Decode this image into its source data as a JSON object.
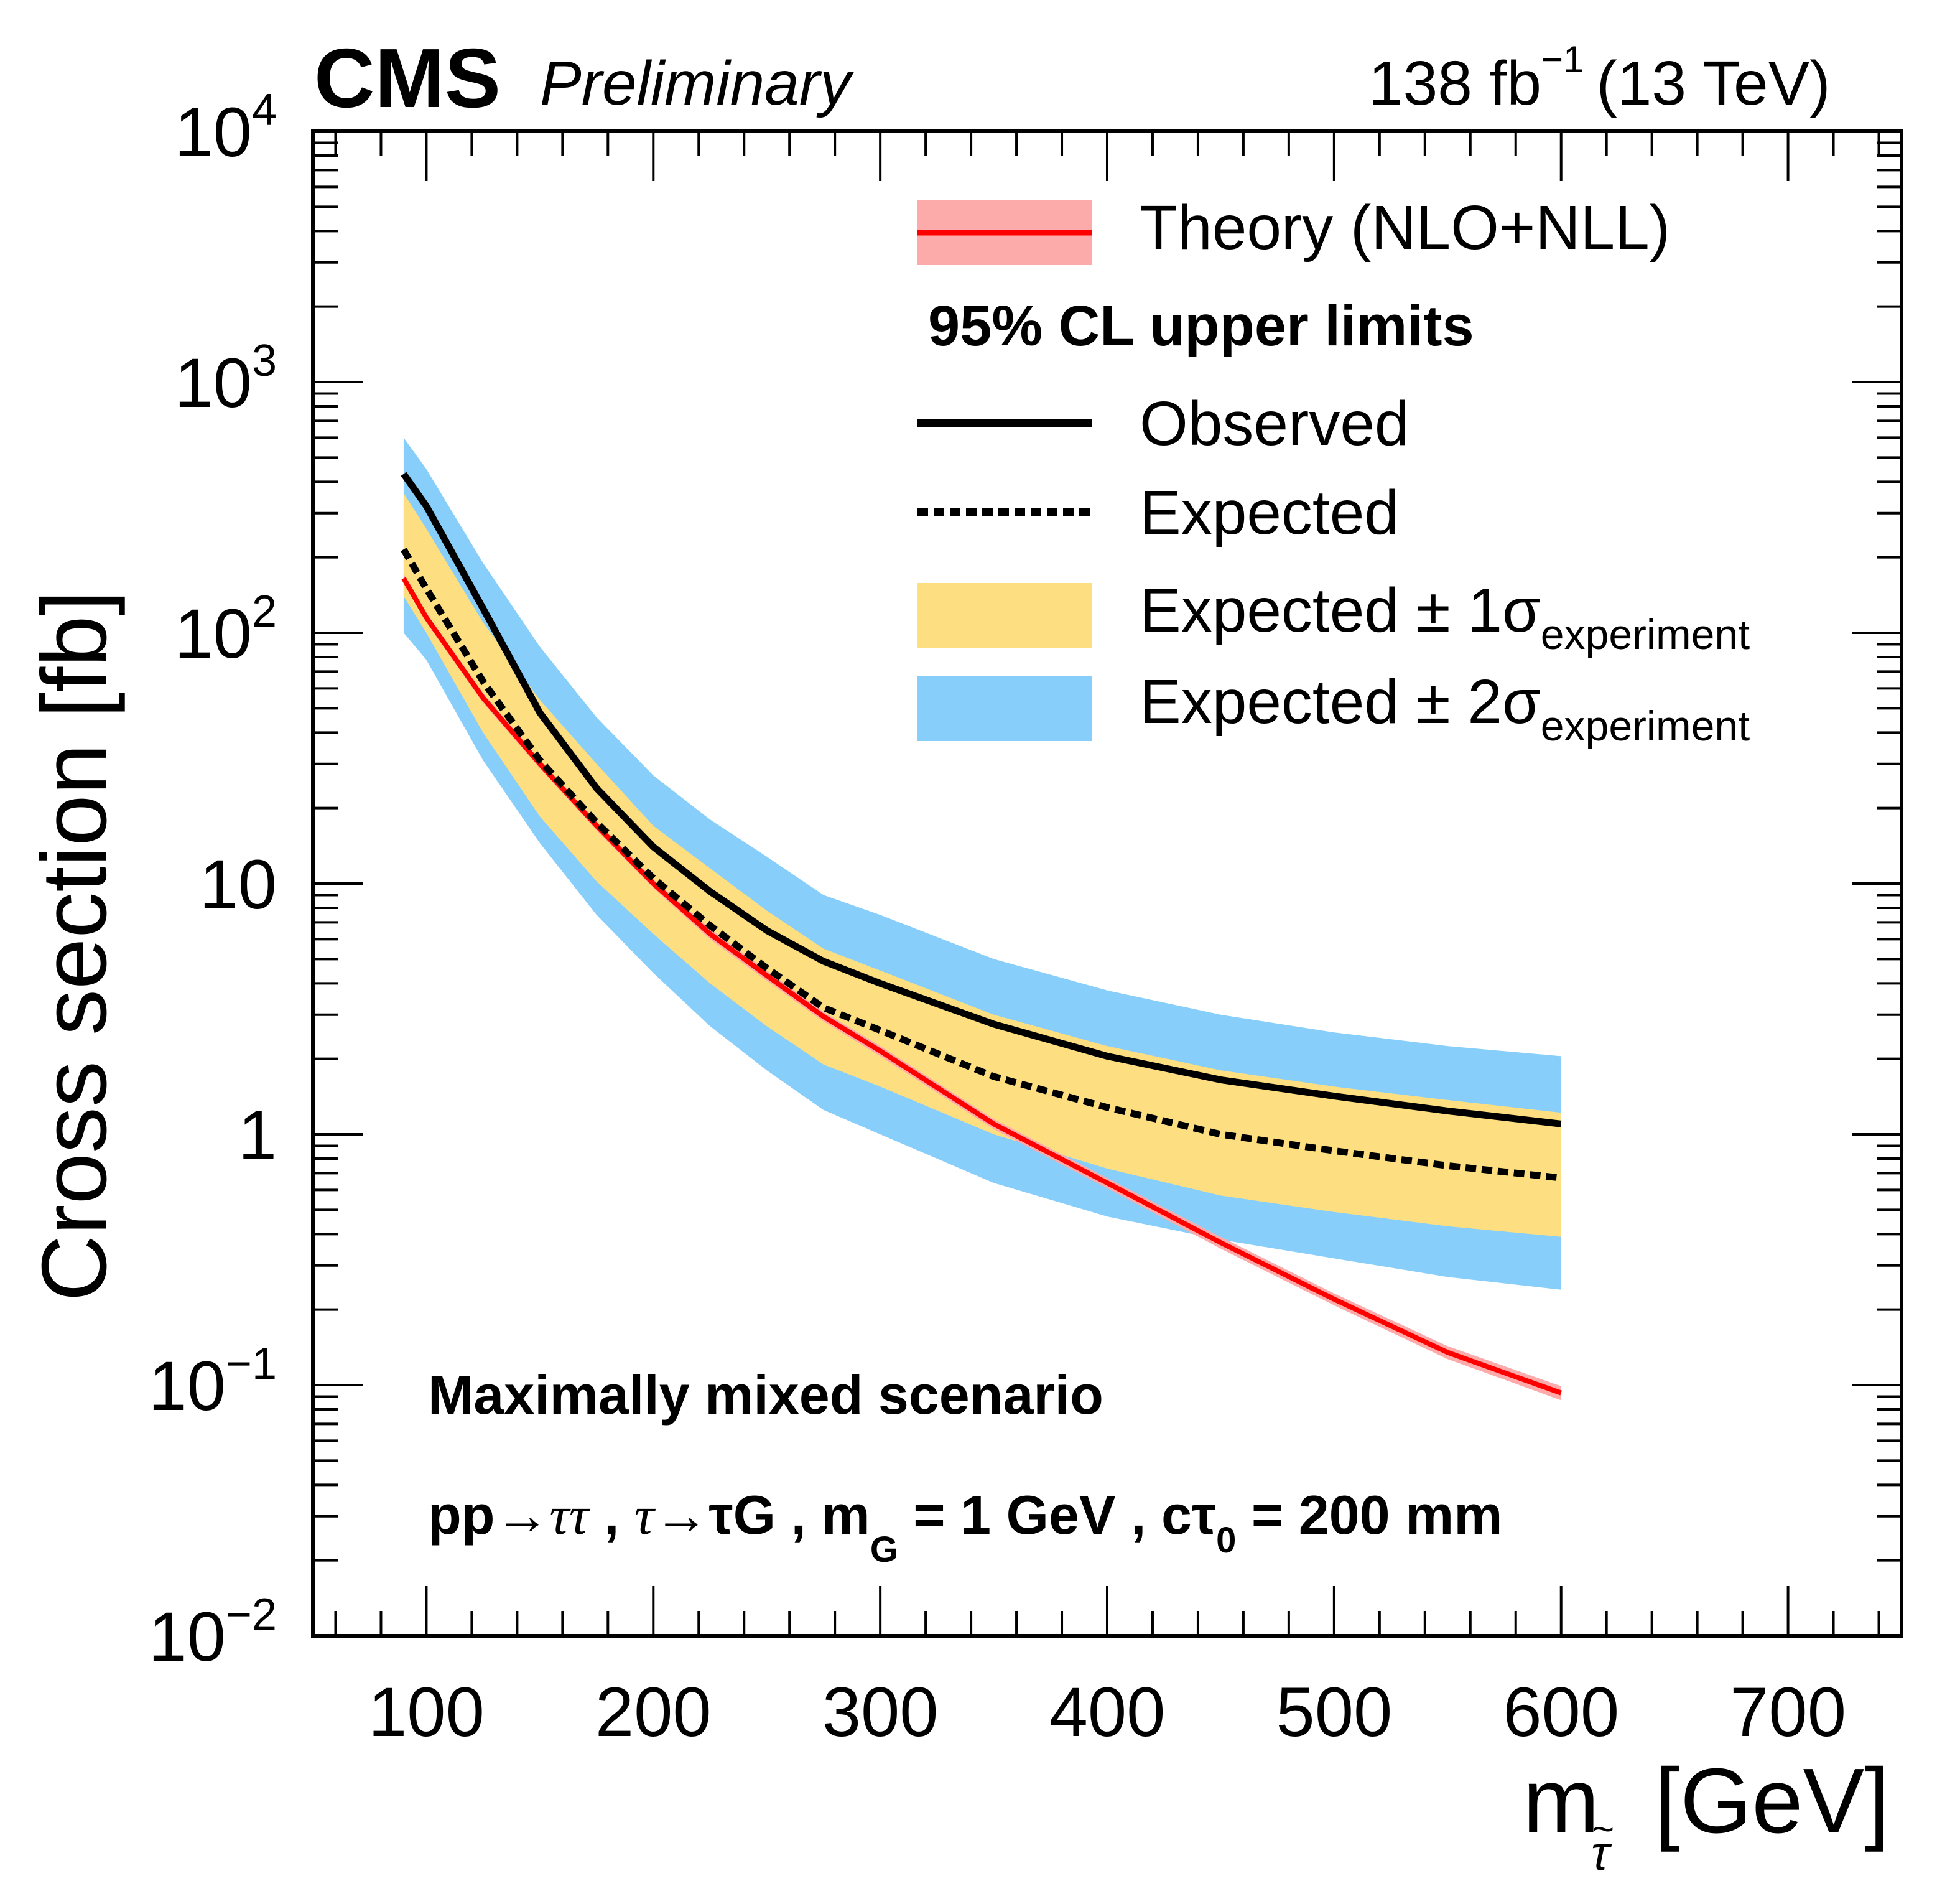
{
  "header": {
    "experiment": "CMS",
    "status": "Preliminary",
    "luminosity": "138 fb",
    "luminosity_exp": "−1",
    "energy": "(13 TeV)"
  },
  "legend": {
    "theory": "Theory (NLO+NLL)",
    "limits_header": "95% CL upper limits",
    "observed": "Observed",
    "expected": "Expected",
    "one_sigma": "Expected ± 1σ",
    "two_sigma": "Expected ± 2σ",
    "sigma_sub": "experiment"
  },
  "annotation": {
    "scenario": "Maximally mixed scenario",
    "process_a": "pp→",
    "process_b": " , ",
    "process_c": "→τ",
    "process_d": " , m",
    "process_e": " = 1 GeV , cτ",
    "process_f": "0",
    "process_g": " = 200 mm",
    "tau": "τ",
    "G": "G",
    "tilde": "~"
  },
  "colors": {
    "theory_line": "#ff0000",
    "theory_band": "#fdaaaa",
    "one_sigma": "#fddf81",
    "two_sigma": "#87cefa",
    "observed": "#000000"
  },
  "chart_data": {
    "type": "line",
    "title": "CMS Preliminary",
    "subtitle": "138 fb^-1 (13 TeV)",
    "xlabel": "m_stau [GeV]",
    "ylabel": "Cross section [fb]",
    "xlim": [
      50,
      750
    ],
    "ylim": [
      0.01,
      10000
    ],
    "yscale": "log",
    "grid": false,
    "legend_position": "top-right",
    "x_ticks": [
      "100",
      "200",
      "300",
      "400",
      "500",
      "600",
      "700"
    ],
    "x_tick_values": [
      100,
      200,
      300,
      400,
      500,
      600,
      700
    ],
    "y_ticks": [
      {
        "value": 10000,
        "base": "10",
        "exp": "4"
      },
      {
        "value": 1000,
        "base": "10",
        "exp": "3"
      },
      {
        "value": 100,
        "base": "10",
        "exp": "2"
      },
      {
        "value": 10,
        "base": "10",
        "exp": ""
      },
      {
        "value": 1,
        "base": "1",
        "exp": ""
      },
      {
        "value": 0.1,
        "base": "10",
        "exp": "−1"
      },
      {
        "value": 0.01,
        "base": "10",
        "exp": "−2"
      }
    ],
    "x": [
      90,
      100,
      125,
      150,
      175,
      200,
      225,
      250,
      275,
      300,
      350,
      400,
      450,
      500,
      550,
      600
    ],
    "series": [
      {
        "name": "Observed",
        "values": [
          430,
          320,
          125,
          48,
          24,
          14,
          9.3,
          6.5,
          4.9,
          4.0,
          2.75,
          2.05,
          1.65,
          1.42,
          1.24,
          1.1
        ]
      },
      {
        "name": "Expected",
        "values": [
          215,
          150,
          64,
          31,
          17.5,
          10.5,
          6.8,
          4.6,
          3.2,
          2.6,
          1.7,
          1.28,
          1.0,
          0.86,
          0.75,
          0.67
        ]
      },
      {
        "name": "Expected +1 sigma",
        "values": [
          360,
          260,
          110,
          54,
          30,
          17,
          11.5,
          7.8,
          5.5,
          4.5,
          3.0,
          2.25,
          1.8,
          1.55,
          1.37,
          1.22
        ]
      },
      {
        "name": "Expected -1 sigma",
        "values": [
          140,
          100,
          40,
          18.5,
          10.2,
          6.3,
          4.0,
          2.7,
          1.9,
          1.55,
          1.0,
          0.73,
          0.57,
          0.49,
          0.43,
          0.39
        ]
      },
      {
        "name": "Expected +2 sigma",
        "values": [
          600,
          450,
          190,
          88,
          46,
          27,
          18,
          12.8,
          9.0,
          7.5,
          5.0,
          3.75,
          3.0,
          2.55,
          2.25,
          2.05
        ]
      },
      {
        "name": "Expected -2 sigma",
        "values": [
          100,
          78,
          31,
          14.5,
          7.5,
          4.4,
          2.7,
          1.8,
          1.25,
          1.0,
          0.64,
          0.47,
          0.38,
          0.32,
          0.27,
          0.24
        ]
      },
      {
        "name": "Theory (NLO+NLL)",
        "values": [
          165,
          115,
          55,
          30,
          17,
          10.0,
          6.3,
          4.3,
          2.95,
          2.15,
          1.1,
          0.64,
          0.37,
          0.22,
          0.135,
          0.093
        ]
      },
      {
        "name": "Theory upper",
        "values": [
          172,
          120,
          57.5,
          31.2,
          17.7,
          10.4,
          6.6,
          4.5,
          3.08,
          2.25,
          1.15,
          0.67,
          0.39,
          0.232,
          0.143,
          0.099
        ]
      },
      {
        "name": "Theory lower",
        "values": [
          158,
          110,
          52.5,
          28.8,
          16.3,
          9.6,
          6.0,
          4.1,
          2.82,
          2.05,
          1.05,
          0.61,
          0.35,
          0.208,
          0.127,
          0.087
        ]
      }
    ]
  }
}
